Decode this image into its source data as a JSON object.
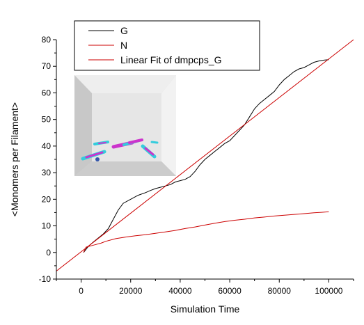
{
  "chart_data": {
    "type": "line",
    "xlabel": "Simulation Time",
    "ylabel": "<Monomers per Filament>",
    "xlim": [
      -10000,
      110000
    ],
    "ylim": [
      -10,
      80
    ],
    "xticks": [
      0,
      20000,
      40000,
      60000,
      80000,
      100000
    ],
    "yticks": [
      -10,
      0,
      10,
      20,
      30,
      40,
      50,
      60,
      70,
      80
    ],
    "legend_position": "top-left",
    "series": [
      {
        "name": "G",
        "color": "#000000",
        "points": [
          [
            1000,
            0
          ],
          [
            2000,
            1.2
          ],
          [
            3000,
            2.4
          ],
          [
            5000,
            4
          ],
          [
            7000,
            5.5
          ],
          [
            9000,
            7
          ],
          [
            11000,
            9
          ],
          [
            13000,
            12.5
          ],
          [
            15000,
            16
          ],
          [
            17000,
            18.5
          ],
          [
            20000,
            20
          ],
          [
            23000,
            21.5
          ],
          [
            26000,
            22.5
          ],
          [
            28000,
            23.3
          ],
          [
            30000,
            24
          ],
          [
            32000,
            24.5
          ],
          [
            34000,
            25
          ],
          [
            36000,
            25.5
          ],
          [
            38000,
            26.5
          ],
          [
            40000,
            27
          ],
          [
            42000,
            27.5
          ],
          [
            44000,
            28.5
          ],
          [
            46000,
            30.5
          ],
          [
            48000,
            33
          ],
          [
            50000,
            35
          ],
          [
            52000,
            36.5
          ],
          [
            54000,
            38
          ],
          [
            56000,
            39.5
          ],
          [
            58000,
            41
          ],
          [
            60000,
            42
          ],
          [
            62000,
            44
          ],
          [
            64000,
            46
          ],
          [
            66000,
            48
          ],
          [
            68000,
            51
          ],
          [
            70000,
            54
          ],
          [
            72000,
            56
          ],
          [
            74000,
            57.5
          ],
          [
            76000,
            59
          ],
          [
            78000,
            60.5
          ],
          [
            80000,
            63
          ],
          [
            82000,
            65
          ],
          [
            84000,
            66.5
          ],
          [
            86000,
            68
          ],
          [
            88000,
            69
          ],
          [
            90000,
            69.5
          ],
          [
            92000,
            70.5
          ],
          [
            94000,
            71.5
          ],
          [
            96000,
            72
          ],
          [
            98000,
            72.3
          ],
          [
            100000,
            72.5
          ]
        ]
      },
      {
        "name": "N",
        "color": "#cc0000",
        "points": [
          [
            1000,
            0
          ],
          [
            2000,
            2
          ],
          [
            4000,
            2.5
          ],
          [
            6000,
            3
          ],
          [
            8000,
            3.5
          ],
          [
            10000,
            4.2
          ],
          [
            14000,
            5.2
          ],
          [
            18000,
            5.8
          ],
          [
            22000,
            6.3
          ],
          [
            26000,
            6.7
          ],
          [
            30000,
            7.2
          ],
          [
            34000,
            7.7
          ],
          [
            38000,
            8.3
          ],
          [
            42000,
            9
          ],
          [
            46000,
            9.6
          ],
          [
            50000,
            10.3
          ],
          [
            54000,
            11
          ],
          [
            58000,
            11.6
          ],
          [
            62000,
            12.1
          ],
          [
            66000,
            12.5
          ],
          [
            70000,
            13
          ],
          [
            74000,
            13.3
          ],
          [
            78000,
            13.7
          ],
          [
            82000,
            14
          ],
          [
            86000,
            14.3
          ],
          [
            90000,
            14.6
          ],
          [
            94000,
            14.9
          ],
          [
            97000,
            15.1
          ],
          [
            100000,
            15.3
          ]
        ]
      },
      {
        "name": "Linear Fit of dmpcps_G",
        "color": "#cc0000",
        "points": [
          [
            -10000,
            -7
          ],
          [
            110000,
            80
          ]
        ]
      }
    ]
  }
}
